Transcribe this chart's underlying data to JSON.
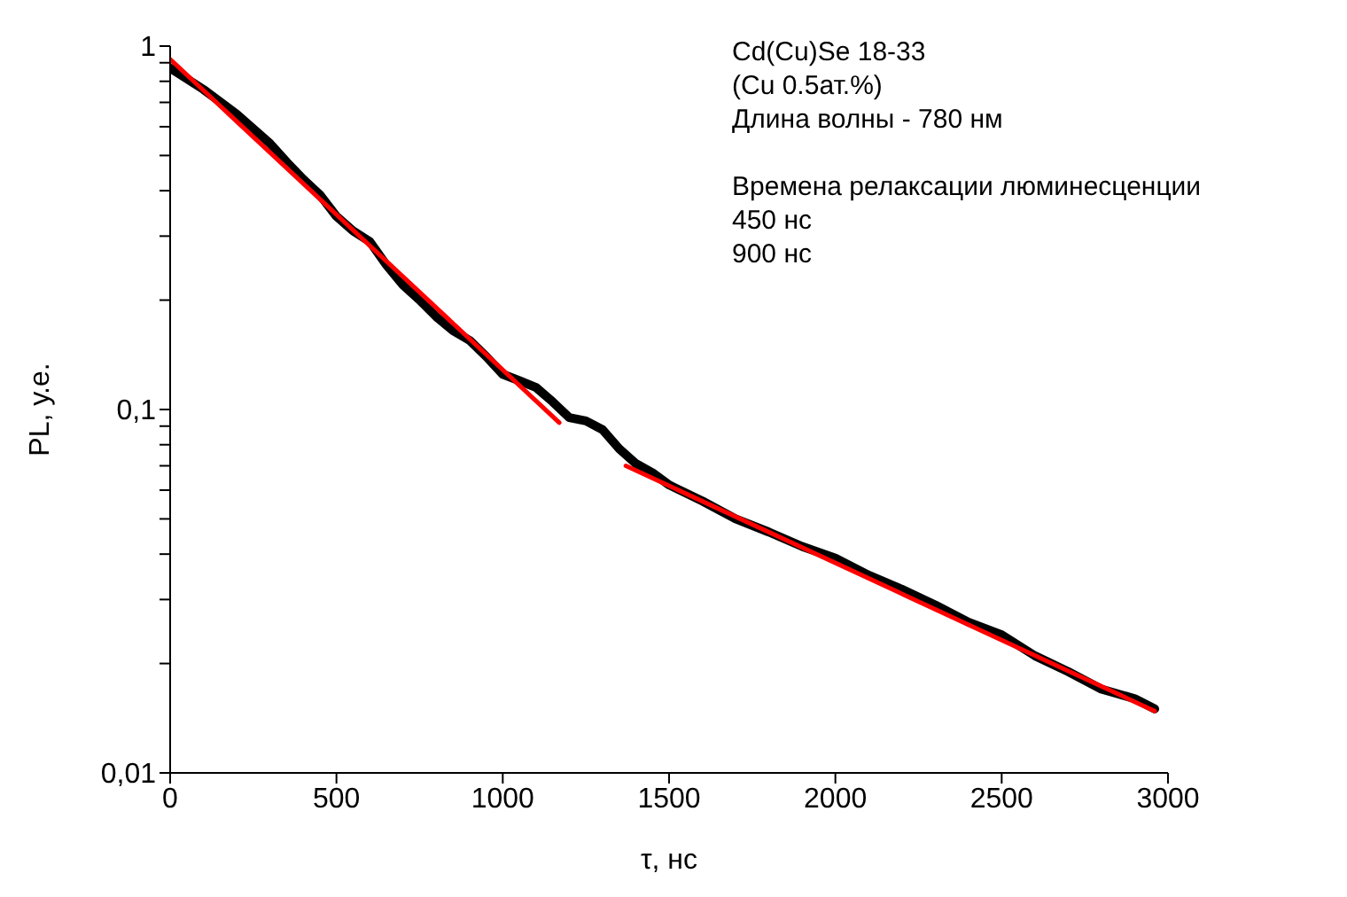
{
  "chart_data": {
    "type": "line",
    "xlabel": "τ, нс",
    "ylabel": "PL, у.е.",
    "log": "y",
    "xlim": [
      0,
      3000
    ],
    "xticks": [
      0,
      500,
      1000,
      1500,
      2000,
      2500,
      3000
    ],
    "ylim": [
      0.01,
      1
    ],
    "yticks": [
      {
        "value": 0.01,
        "label": "0,01"
      },
      {
        "value": 0.02,
        "label": null
      },
      {
        "value": 0.03,
        "label": null
      },
      {
        "value": 0.04,
        "label": null
      },
      {
        "value": 0.05,
        "label": null
      },
      {
        "value": 0.06,
        "label": null
      },
      {
        "value": 0.07,
        "label": null
      },
      {
        "value": 0.08,
        "label": null
      },
      {
        "value": 0.09,
        "label": null
      },
      {
        "value": 0.1,
        "label": "0,1"
      },
      {
        "value": 0.2,
        "label": null
      },
      {
        "value": 0.3,
        "label": null
      },
      {
        "value": 0.4,
        "label": null
      },
      {
        "value": 0.5,
        "label": null
      },
      {
        "value": 0.6,
        "label": null
      },
      {
        "value": 0.7,
        "label": null
      },
      {
        "value": 0.8,
        "label": null
      },
      {
        "value": 0.9,
        "label": null
      },
      {
        "value": 1,
        "label": "1"
      }
    ],
    "annotations": [
      "Cd(Cu)Se 18-33",
      "(Cu 0.5ат.%)",
      "Длина волны - 780 нм",
      "Времена релаксации люминесценции",
      "450 нс",
      "900 нс"
    ],
    "series": [
      {
        "color": "#000000",
        "x": [
          0,
          100,
          200,
          300,
          350,
          400,
          450,
          500,
          550,
          600,
          650,
          700,
          750,
          800,
          850,
          900,
          950,
          1000,
          1050,
          1100,
          1150,
          1200,
          1250,
          1300,
          1350,
          1400,
          1450,
          1500,
          1600,
          1700,
          1800,
          1900,
          2000,
          2100,
          2200,
          2300,
          2400,
          2500,
          2600,
          2700,
          2800,
          2900,
          2960
        ],
        "values": [
          0.87,
          0.76,
          0.65,
          0.54,
          0.48,
          0.43,
          0.39,
          0.34,
          0.31,
          0.29,
          0.25,
          0.22,
          0.2,
          0.18,
          0.165,
          0.155,
          0.14,
          0.125,
          0.12,
          0.115,
          0.105,
          0.095,
          0.093,
          0.088,
          0.078,
          0.071,
          0.067,
          0.062,
          0.056,
          0.05,
          0.046,
          0.042,
          0.039,
          0.035,
          0.032,
          0.029,
          0.026,
          0.024,
          0.021,
          0.019,
          0.017,
          0.016,
          0.015
        ]
      },
      {
        "color": "#ff0000",
        "x": [
          0,
          1170
        ],
        "values": [
          0.92,
          0.092
        ]
      },
      {
        "color": "#ff0000",
        "x": [
          1370,
          2960
        ],
        "values": [
          0.07,
          0.0148
        ]
      }
    ]
  }
}
